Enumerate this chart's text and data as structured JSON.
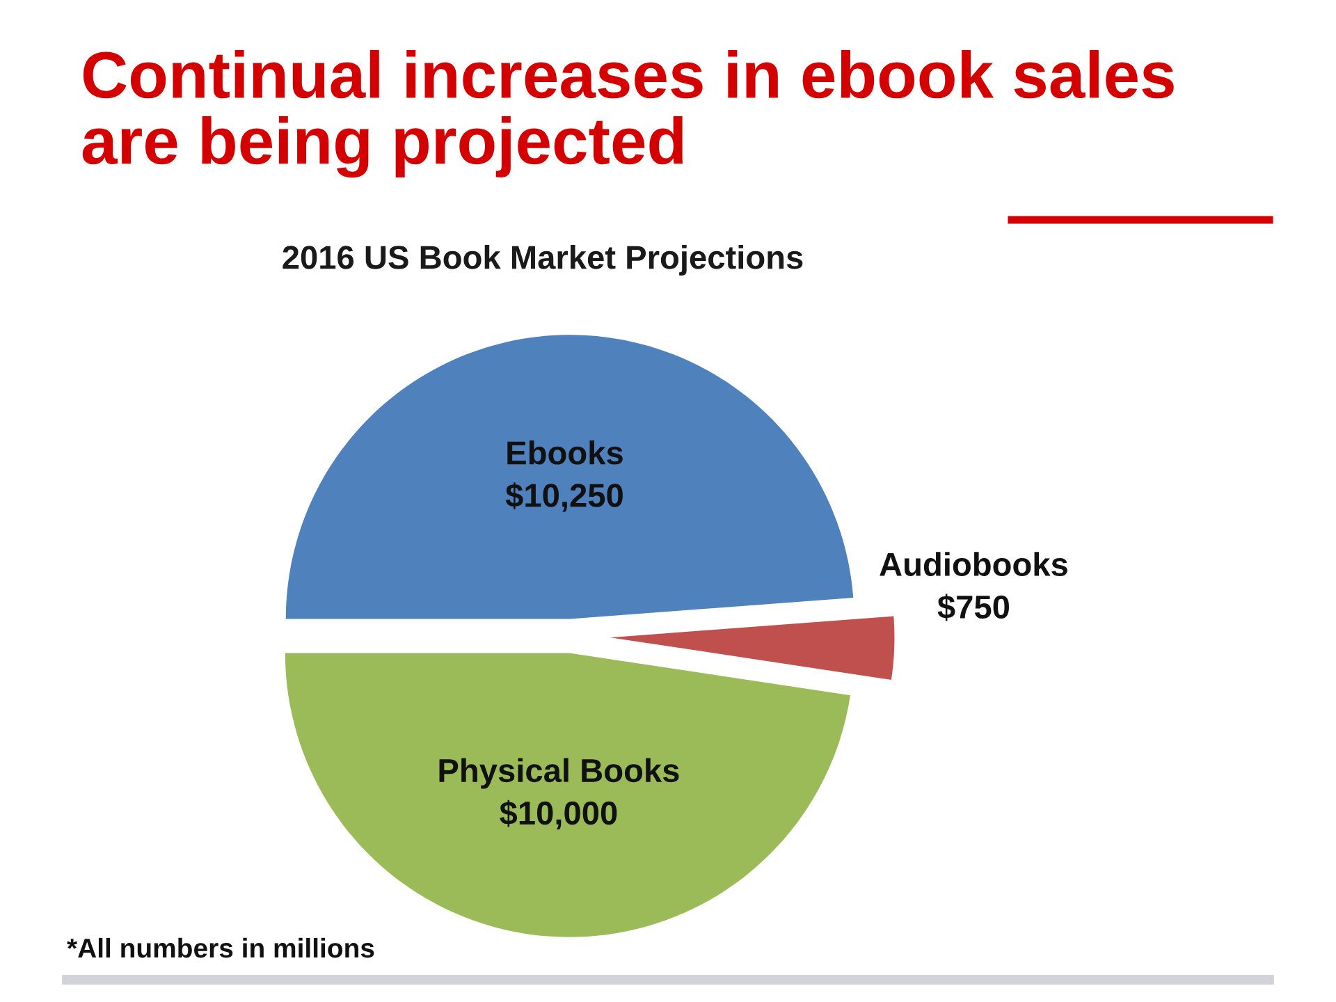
{
  "chart_data": {
    "type": "pie",
    "title": "Continual increases in ebook sales are being projected",
    "subtitle": "2016 US Book Market Projections",
    "categories": [
      "Ebooks",
      "Audiobooks",
      "Physical Books"
    ],
    "values": [
      10250,
      750,
      10000
    ],
    "value_labels": [
      "$10,250",
      "$750",
      "$10,000"
    ],
    "colors": [
      "#4f81bd",
      "#c0504d",
      "#9bbb59"
    ],
    "annotations": [
      "*All numbers in millions"
    ],
    "legend": false
  }
}
